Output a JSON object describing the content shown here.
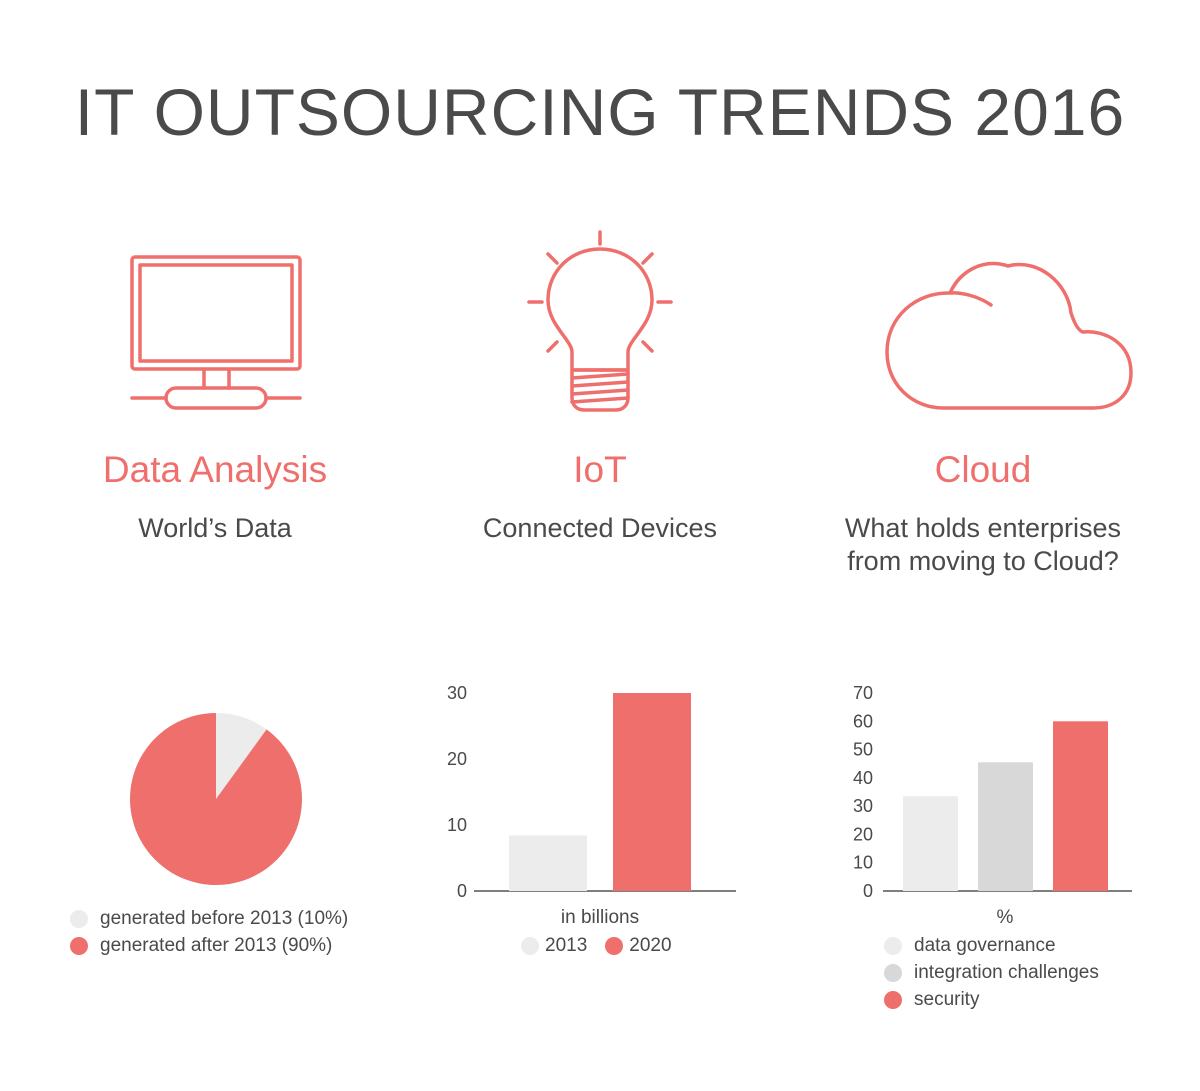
{
  "title": "IT OUTSOURCING TRENDS 2016",
  "colors": {
    "accent": "#ef6f6c",
    "light_gray": "#ececec",
    "mid_gray": "#d8d8d8",
    "text": "#4a4a4a"
  },
  "sections": [
    {
      "icon": "monitor-icon",
      "heading": "Data Analysis",
      "subtitle": "World’s Data"
    },
    {
      "icon": "lightbulb-icon",
      "heading": "IoT",
      "subtitle": "Connected Devices"
    },
    {
      "icon": "cloud-icon",
      "heading": "Cloud",
      "subtitle_line1": "What holds enterprises",
      "subtitle_line2": "from moving to Cloud?"
    }
  ],
  "chart_data": [
    {
      "type": "pie",
      "slices": [
        {
          "label": "generated before 2013 (10%)",
          "value": 10,
          "color": "#ececec"
        },
        {
          "label": "generated after 2013 (90%)",
          "value": 90,
          "color": "#ef6f6c"
        }
      ]
    },
    {
      "type": "bar",
      "categories": [
        "2013",
        "2020"
      ],
      "values": [
        8.4,
        30
      ],
      "colors": [
        "#ececec",
        "#ef6f6c"
      ],
      "xlabel": "in billions",
      "ylim": [
        0,
        30
      ],
      "yticks": [
        0,
        10,
        20,
        30
      ],
      "legend": [
        "2013",
        "2020"
      ]
    },
    {
      "type": "bar",
      "categories": [
        "data governance",
        "integration challenges",
        "security"
      ],
      "values": [
        33.5,
        45.5,
        60
      ],
      "colors": [
        "#ececec",
        "#d8d8d8",
        "#ef6f6c"
      ],
      "xlabel": "%",
      "ylim": [
        0,
        70
      ],
      "yticks": [
        0,
        10,
        20,
        30,
        40,
        50,
        60,
        70
      ],
      "legend": [
        "data governance",
        "integration challenges",
        "security"
      ]
    }
  ]
}
